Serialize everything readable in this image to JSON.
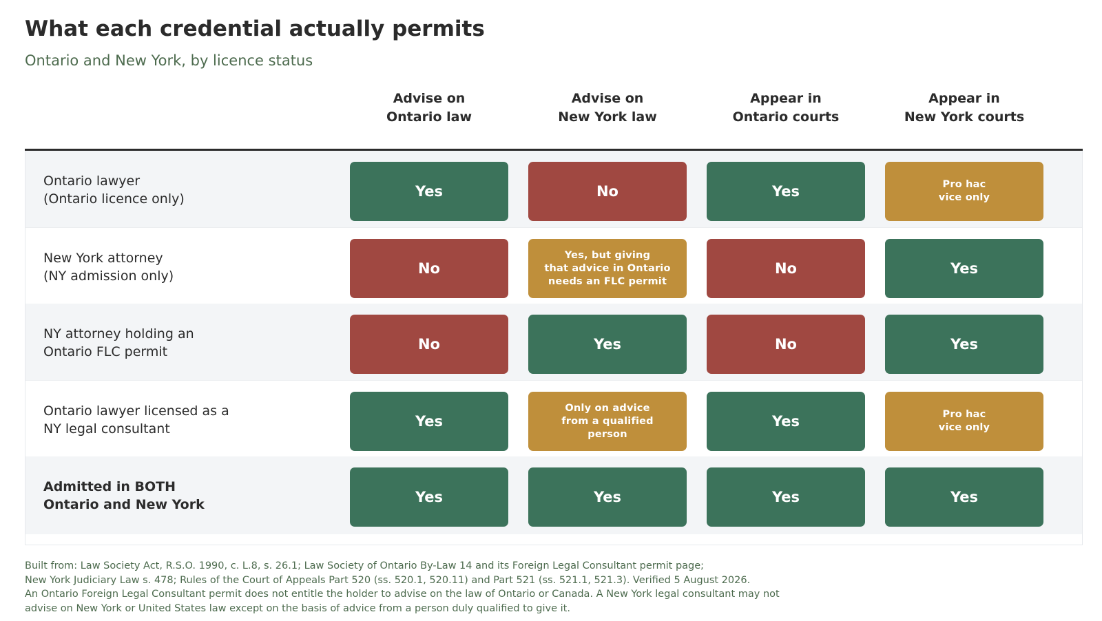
{
  "title": "What each credential actually permits",
  "subtitle": "Ontario and New York, by licence status",
  "colors": {
    "Yes": "#3c735b",
    "No": "#a04841",
    "Partial": "#bf8f3b"
  },
  "chart_data": {
    "type": "table",
    "columns": [
      [
        "Advise on",
        "Ontario law"
      ],
      [
        "Advise on",
        "New York law"
      ],
      [
        "Appear in",
        "Ontario courts"
      ],
      [
        "Appear in",
        "New York courts"
      ]
    ],
    "rows": [
      {
        "label": [
          "Ontario lawyer",
          "(Ontario licence only)"
        ],
        "bold": false,
        "cells": [
          {
            "status": "Yes",
            "text": [
              "Yes"
            ]
          },
          {
            "status": "No",
            "text": [
              "No"
            ]
          },
          {
            "status": "Yes",
            "text": [
              "Yes"
            ]
          },
          {
            "status": "Partial",
            "text": [
              "Pro hac",
              "vice only"
            ]
          }
        ]
      },
      {
        "label": [
          "New York attorney",
          "(NY admission only)"
        ],
        "bold": false,
        "cells": [
          {
            "status": "No",
            "text": [
              "No"
            ]
          },
          {
            "status": "Partial",
            "text": [
              "Yes, but giving",
              "that advice in Ontario",
              "needs an FLC permit"
            ]
          },
          {
            "status": "No",
            "text": [
              "No"
            ]
          },
          {
            "status": "Yes",
            "text": [
              "Yes"
            ]
          }
        ]
      },
      {
        "label": [
          "NY attorney holding an",
          "Ontario FLC permit"
        ],
        "bold": false,
        "cells": [
          {
            "status": "No",
            "text": [
              "No"
            ]
          },
          {
            "status": "Yes",
            "text": [
              "Yes"
            ]
          },
          {
            "status": "No",
            "text": [
              "No"
            ]
          },
          {
            "status": "Yes",
            "text": [
              "Yes"
            ]
          }
        ]
      },
      {
        "label": [
          "Ontario lawyer licensed as a",
          "NY legal consultant"
        ],
        "bold": false,
        "cells": [
          {
            "status": "Yes",
            "text": [
              "Yes"
            ]
          },
          {
            "status": "Partial",
            "text": [
              "Only on advice",
              "from a qualified",
              "person"
            ]
          },
          {
            "status": "Yes",
            "text": [
              "Yes"
            ]
          },
          {
            "status": "Partial",
            "text": [
              "Pro hac",
              "vice only"
            ]
          }
        ]
      },
      {
        "label": [
          "Admitted in BOTH",
          "Ontario and New York"
        ],
        "bold": true,
        "cells": [
          {
            "status": "Yes",
            "text": [
              "Yes"
            ]
          },
          {
            "status": "Yes",
            "text": [
              "Yes"
            ]
          },
          {
            "status": "Yes",
            "text": [
              "Yes"
            ]
          },
          {
            "status": "Yes",
            "text": [
              "Yes"
            ]
          }
        ]
      }
    ]
  },
  "footnote": [
    "Built from: Law Society Act, R.S.O. 1990, c. L.8, s. 26.1; Law Society of Ontario By-Law 14 and its Foreign Legal Consultant permit page;",
    "New York Judiciary Law s. 478; Rules of the Court of Appeals Part 520 (ss. 520.1, 520.11) and Part 521 (ss. 521.1, 521.3). Verified 5 August 2026.",
    "An Ontario Foreign Legal Consultant permit does not entitle the holder to advise on the law of Ontario or Canada. A New York legal consultant may not",
    "advise on New York or United States law except on the basis of advice from a person duly qualified to give it."
  ]
}
